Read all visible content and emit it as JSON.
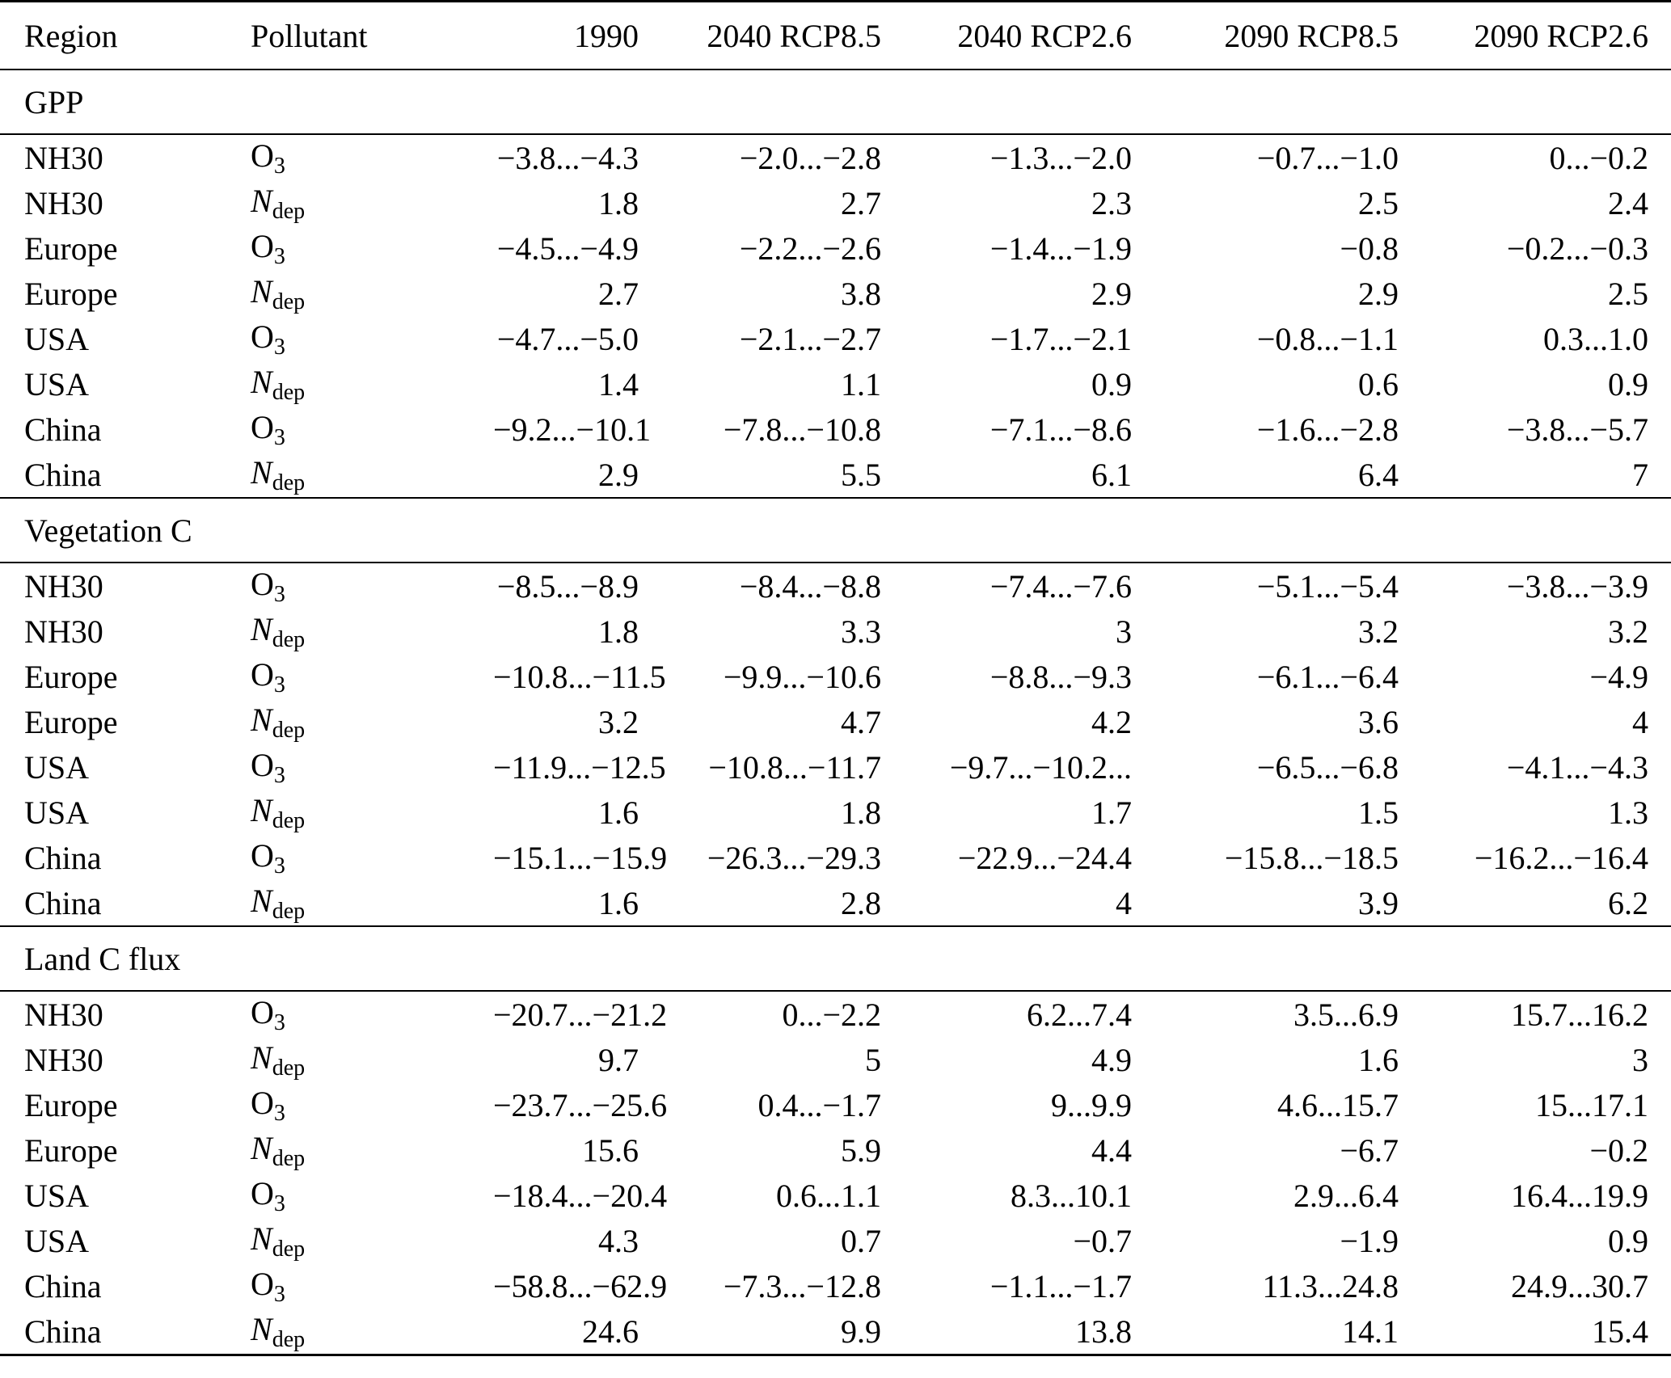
{
  "table": {
    "columns": [
      "Region",
      "Pollutant",
      "1990",
      "2040 RCP8.5",
      "2040 RCP2.6",
      "2090 RCP8.5",
      "2090 RCP2.6"
    ],
    "sections": [
      {
        "title": "GPP",
        "rows": [
          {
            "region": "NH30",
            "pollutant": {
              "base": "O",
              "sub": "3",
              "style": "roman"
            },
            "values": [
              "−3.8...−4.3",
              "−2.0...−2.8",
              "−1.3...−2.0",
              "−0.7...−1.0",
              "0...−0.2"
            ]
          },
          {
            "region": "NH30",
            "pollutant": {
              "base": "N",
              "sub": "dep",
              "style": "italic"
            },
            "values": [
              "1.8",
              "2.7",
              "2.3",
              "2.5",
              "2.4"
            ]
          },
          {
            "region": "Europe",
            "pollutant": {
              "base": "O",
              "sub": "3",
              "style": "roman"
            },
            "values": [
              "−4.5...−4.9",
              "−2.2...−2.6",
              "−1.4...−1.9",
              "−0.8",
              "−0.2...−0.3"
            ]
          },
          {
            "region": "Europe",
            "pollutant": {
              "base": "N",
              "sub": "dep",
              "style": "italic"
            },
            "values": [
              "2.7",
              "3.8",
              "2.9",
              "2.9",
              "2.5"
            ]
          },
          {
            "region": "USA",
            "pollutant": {
              "base": "O",
              "sub": "3",
              "style": "roman"
            },
            "values": [
              "−4.7...−5.0",
              "−2.1...−2.7",
              "−1.7...−2.1",
              "−0.8...−1.1",
              "0.3...1.0"
            ]
          },
          {
            "region": "USA",
            "pollutant": {
              "base": "N",
              "sub": "dep",
              "style": "italic"
            },
            "values": [
              "1.4",
              "1.1",
              "0.9",
              "0.6",
              "0.9"
            ]
          },
          {
            "region": "China",
            "pollutant": {
              "base": "O",
              "sub": "3",
              "style": "roman"
            },
            "values": [
              "−9.2...−10.1",
              "−7.8...−10.8",
              "−7.1...−8.6",
              "−1.6...−2.8",
              "−3.8...−5.7"
            ]
          },
          {
            "region": "China",
            "pollutant": {
              "base": "N",
              "sub": "dep",
              "style": "italic"
            },
            "values": [
              "2.9",
              "5.5",
              "6.1",
              "6.4",
              "7"
            ]
          }
        ]
      },
      {
        "title": "Vegetation C",
        "rows": [
          {
            "region": "NH30",
            "pollutant": {
              "base": "O",
              "sub": "3",
              "style": "roman"
            },
            "values": [
              "−8.5...−8.9",
              "−8.4...−8.8",
              "−7.4...−7.6",
              "−5.1...−5.4",
              "−3.8...−3.9"
            ]
          },
          {
            "region": "NH30",
            "pollutant": {
              "base": "N",
              "sub": "dep",
              "style": "italic"
            },
            "values": [
              "1.8",
              "3.3",
              "3",
              "3.2",
              "3.2"
            ]
          },
          {
            "region": "Europe",
            "pollutant": {
              "base": "O",
              "sub": "3",
              "style": "roman"
            },
            "values": [
              "−10.8...−11.5",
              "−9.9...−10.6",
              "−8.8...−9.3",
              "−6.1...−6.4",
              "−4.9"
            ]
          },
          {
            "region": "Europe",
            "pollutant": {
              "base": "N",
              "sub": "dep",
              "style": "italic"
            },
            "values": [
              "3.2",
              "4.7",
              "4.2",
              "3.6",
              "4"
            ]
          },
          {
            "region": "USA",
            "pollutant": {
              "base": "O",
              "sub": "3",
              "style": "roman"
            },
            "values": [
              "−11.9...−12.5",
              "−10.8...−11.7",
              "−9.7...−10.2...",
              "−6.5...−6.8",
              "−4.1...−4.3"
            ]
          },
          {
            "region": "USA",
            "pollutant": {
              "base": "N",
              "sub": "dep",
              "style": "italic"
            },
            "values": [
              "1.6",
              "1.8",
              "1.7",
              "1.5",
              "1.3"
            ]
          },
          {
            "region": "China",
            "pollutant": {
              "base": "O",
              "sub": "3",
              "style": "roman"
            },
            "values": [
              "−15.1...−15.9",
              "−26.3...−29.3",
              "−22.9...−24.4",
              "−15.8...−18.5",
              "−16.2...−16.4"
            ]
          },
          {
            "region": "China",
            "pollutant": {
              "base": "N",
              "sub": "dep",
              "style": "italic"
            },
            "values": [
              "1.6",
              "2.8",
              "4",
              "3.9",
              "6.2"
            ]
          }
        ]
      },
      {
        "title": "Land C flux",
        "rows": [
          {
            "region": "NH30",
            "pollutant": {
              "base": "O",
              "sub": "3",
              "style": "roman"
            },
            "values": [
              "−20.7...−21.2",
              "0...−2.2",
              "6.2...7.4",
              "3.5...6.9",
              "15.7...16.2"
            ]
          },
          {
            "region": "NH30",
            "pollutant": {
              "base": "N",
              "sub": "dep",
              "style": "italic"
            },
            "values": [
              "9.7",
              "5",
              "4.9",
              "1.6",
              "3"
            ]
          },
          {
            "region": "Europe",
            "pollutant": {
              "base": "O",
              "sub": "3",
              "style": "roman"
            },
            "values": [
              "−23.7...−25.6",
              "0.4...−1.7",
              "9...9.9",
              "4.6...15.7",
              "15...17.1"
            ]
          },
          {
            "region": "Europe",
            "pollutant": {
              "base": "N",
              "sub": "dep",
              "style": "italic"
            },
            "values": [
              "15.6",
              "5.9",
              "4.4",
              "−6.7",
              "−0.2"
            ]
          },
          {
            "region": "USA",
            "pollutant": {
              "base": "O",
              "sub": "3",
              "style": "roman"
            },
            "values": [
              "−18.4...−20.4",
              "0.6...1.1",
              "8.3...10.1",
              "2.9...6.4",
              "16.4...19.9"
            ]
          },
          {
            "region": "USA",
            "pollutant": {
              "base": "N",
              "sub": "dep",
              "style": "italic"
            },
            "values": [
              "4.3",
              "0.7",
              "−0.7",
              "−1.9",
              "0.9"
            ]
          },
          {
            "region": "China",
            "pollutant": {
              "base": "O",
              "sub": "3",
              "style": "roman"
            },
            "values": [
              "−58.8...−62.9",
              "−7.3...−12.8",
              "−1.1...−1.7",
              "11.3...24.8",
              "24.9...30.7"
            ]
          },
          {
            "region": "China",
            "pollutant": {
              "base": "N",
              "sub": "dep",
              "style": "italic"
            },
            "values": [
              "24.6",
              "9.9",
              "13.8",
              "14.1",
              "15.4"
            ]
          }
        ]
      }
    ]
  }
}
